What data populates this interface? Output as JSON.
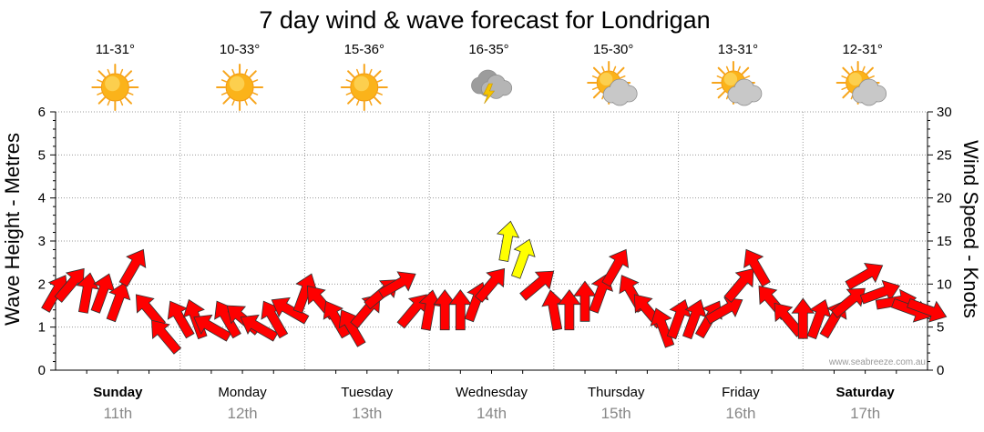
{
  "chart_data": {
    "type": "line",
    "title": "7 day wind & wave forecast for Londrigan",
    "ylabel_left": "Wave Height - Metres",
    "ylabel_right": "Wind Speed - Knots",
    "ylim_left": [
      0,
      6
    ],
    "ylim_right": [
      0,
      30
    ],
    "yticks_left": [
      "0",
      "1",
      "2",
      "3",
      "4",
      "5",
      "6"
    ],
    "yticks_right": [
      "0",
      "5",
      "10",
      "15",
      "20",
      "25",
      "30"
    ],
    "credit": "www.seabreeze.com.au",
    "days": [
      {
        "name": "Sunday",
        "date": "11th",
        "temp": "11-31°",
        "icon": "sun-icon",
        "bold": true
      },
      {
        "name": "Monday",
        "date": "12th",
        "temp": "10-33°",
        "icon": "sun-icon",
        "bold": false
      },
      {
        "name": "Tuesday",
        "date": "13th",
        "temp": "15-36°",
        "icon": "sun-icon",
        "bold": false
      },
      {
        "name": "Wednesday",
        "date": "14th",
        "temp": "16-35°",
        "icon": "storm-icon",
        "bold": false
      },
      {
        "name": "Thursday",
        "date": "15th",
        "temp": "15-30°",
        "icon": "partly-cloudy-icon",
        "bold": false
      },
      {
        "name": "Friday",
        "date": "16th",
        "temp": "13-31°",
        "icon": "partly-cloudy-icon",
        "bold": false
      },
      {
        "name": "Saturday",
        "date": "17th",
        "temp": "12-31°",
        "icon": "partly-cloudy-icon",
        "bold": true
      }
    ],
    "wind_arrow_colors": {
      "normal": "#ff0000",
      "strong": "#ffff00"
    },
    "series": [
      {
        "name": "Wind Speed (knots)",
        "time_hours": [
          0,
          3,
          6,
          9,
          12,
          15,
          18,
          21,
          24,
          27,
          30,
          33,
          36,
          39,
          42,
          45,
          48,
          51,
          54,
          57,
          60,
          63,
          66,
          69,
          72,
          75,
          78,
          81,
          84,
          87,
          90,
          93,
          96,
          99,
          102,
          105,
          108,
          111,
          114,
          117,
          120,
          123,
          126,
          129,
          132,
          135,
          138,
          141,
          144,
          147,
          150,
          153,
          156,
          159,
          162,
          165,
          168
        ],
        "values": [
          9,
          10,
          9,
          9,
          8,
          12,
          7,
          4,
          6,
          6,
          5,
          6,
          6,
          5,
          6,
          7,
          9,
          8,
          6,
          5,
          7,
          9,
          10,
          7,
          7,
          7,
          7,
          8,
          10,
          15,
          13,
          10,
          7,
          7,
          8,
          9,
          12,
          9,
          7,
          5,
          6,
          6,
          6,
          7,
          10,
          12,
          8,
          6,
          6,
          6,
          6,
          8,
          11,
          9,
          8,
          7,
          7
        ],
        "directions_deg": [
          30,
          40,
          10,
          20,
          20,
          30,
          320,
          320,
          330,
          340,
          300,
          330,
          310,
          300,
          330,
          300,
          20,
          320,
          330,
          330,
          40,
          50,
          60,
          40,
          10,
          0,
          0,
          20,
          40,
          10,
          20,
          50,
          350,
          0,
          0,
          20,
          30,
          330,
          320,
          340,
          20,
          20,
          30,
          60,
          40,
          330,
          320,
          320,
          0,
          20,
          30,
          50,
          60,
          70,
          80,
          110,
          110
        ]
      }
    ]
  }
}
